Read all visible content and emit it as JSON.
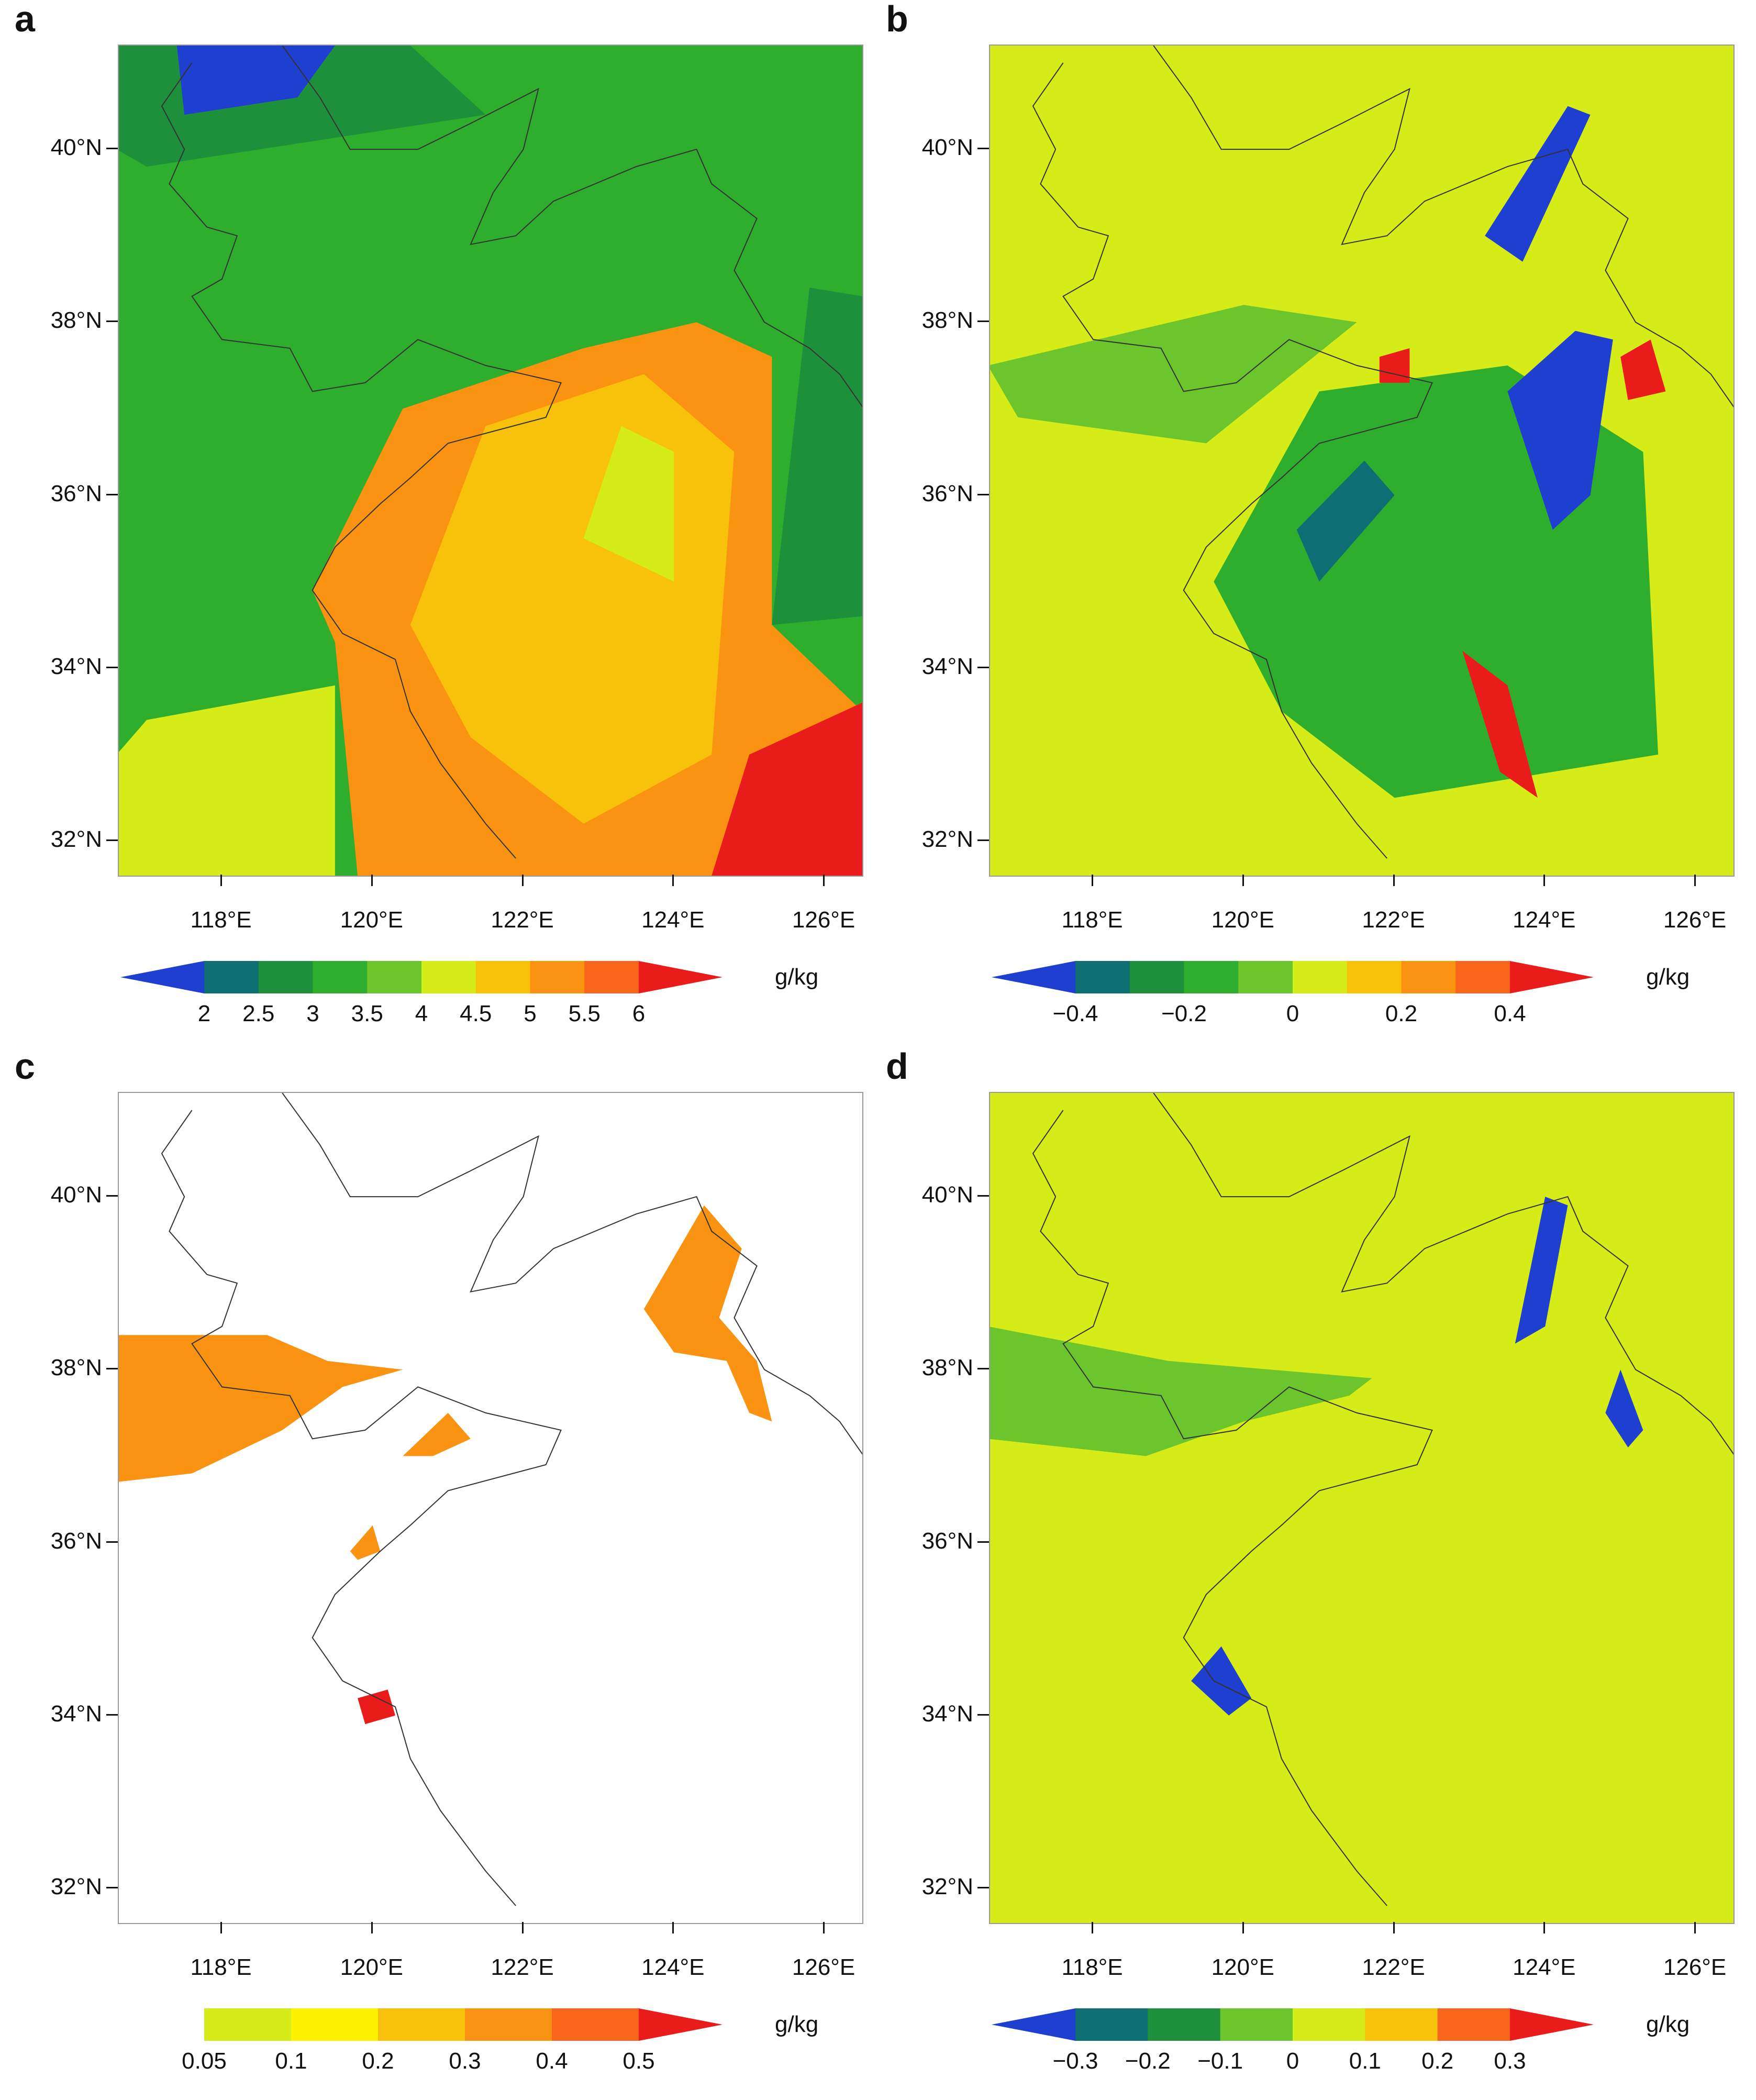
{
  "chart_data": [
    {
      "panel": "a",
      "type": "heatmap",
      "y_ticks": [
        "40°N",
        "38°N",
        "36°N",
        "34°N",
        "32°N"
      ],
      "x_ticks": [
        "118°E",
        "120°E",
        "122°E",
        "124°E",
        "126°E"
      ],
      "colorbar": {
        "units": "g/kg",
        "ticks": [
          "2",
          "2.5",
          "3",
          "3.5",
          "4",
          "4.5",
          "5",
          "5.5",
          "6"
        ],
        "colors": [
          "#1f3fd0",
          "#0e6e73",
          "#1e8f3a",
          "#2eae2c",
          "#6cc52c",
          "#d6ec18",
          "#f8c10c",
          "#f99311",
          "#f7661b",
          "#ea1b1b"
        ],
        "extend": "both"
      }
    },
    {
      "panel": "b",
      "type": "heatmap",
      "y_ticks": [
        "40°N",
        "38°N",
        "36°N",
        "34°N",
        "32°N"
      ],
      "x_ticks": [
        "118°E",
        "120°E",
        "122°E",
        "124°E",
        "126°E"
      ],
      "colorbar": {
        "units": "g/kg",
        "ticks": [
          "−0.4",
          "−0.2",
          "0",
          "0.2",
          "0.4"
        ],
        "colors": [
          "#1f3fd0",
          "#0e6e73",
          "#1e8f3a",
          "#2eae2c",
          "#6cc52c",
          "#d6ec18",
          "#f8c10c",
          "#f99311",
          "#f7661b",
          "#ea1b1b"
        ],
        "extend": "both"
      }
    },
    {
      "panel": "c",
      "type": "heatmap",
      "y_ticks": [
        "40°N",
        "38°N",
        "36°N",
        "34°N",
        "32°N"
      ],
      "x_ticks": [
        "118°E",
        "120°E",
        "122°E",
        "124°E",
        "126°E"
      ],
      "colorbar": {
        "units": "g/kg",
        "ticks": [
          "0.05",
          "0.1",
          "0.2",
          "0.3",
          "0.4",
          "0.5"
        ],
        "colors": [
          "#ffffff",
          "#d6ec18",
          "#fff100",
          "#f8c10c",
          "#f99311",
          "#f7661b",
          "#ea1b1b"
        ],
        "extend": "both"
      }
    },
    {
      "panel": "d",
      "type": "heatmap",
      "y_ticks": [
        "40°N",
        "38°N",
        "36°N",
        "34°N",
        "32°N"
      ],
      "x_ticks": [
        "118°E",
        "120°E",
        "122°E",
        "124°E",
        "126°E"
      ],
      "colorbar": {
        "units": "g/kg",
        "ticks": [
          "−0.3",
          "−0.2",
          "−0.1",
          "0",
          "0.1",
          "0.2",
          "0.3"
        ],
        "colors": [
          "#1f3fd0",
          "#0e6e73",
          "#1e8f3a",
          "#6cc52c",
          "#d6ec18",
          "#f8c10c",
          "#f7661b",
          "#ea1b1b"
        ],
        "extend": "both"
      }
    }
  ],
  "panels": [
    {
      "label": "a"
    },
    {
      "label": "b"
    },
    {
      "label": "c"
    },
    {
      "label": "d"
    }
  ]
}
